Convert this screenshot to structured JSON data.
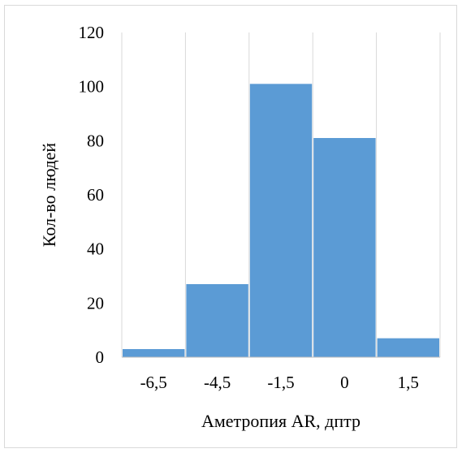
{
  "chart_data": {
    "type": "bar",
    "categories": [
      "-6,5",
      "-4,5",
      "-1,5",
      "0",
      "1,5"
    ],
    "values": [
      3,
      27,
      101,
      81,
      7
    ],
    "yticks": [
      "0",
      "20",
      "40",
      "60",
      "80",
      "100",
      "120"
    ],
    "ylim": [
      0,
      120
    ],
    "xlabel": "Аметропия AR, дптр",
    "ylabel": "Кол-во людей",
    "grid": "vertical",
    "legend": "none",
    "colors": {
      "bar": "#5b9bd5",
      "grid": "#d9d9d9",
      "axis": "#bfbfbf",
      "border": "#d9d9d9"
    }
  }
}
